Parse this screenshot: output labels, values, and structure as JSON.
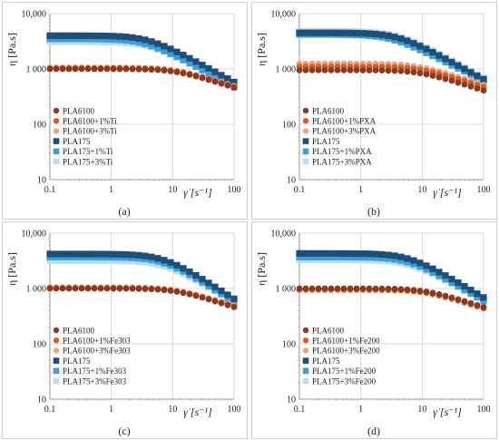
{
  "chart_data": [
    {
      "type": "scatter",
      "panel_label": "(a)",
      "xscale": "log",
      "yscale": "log",
      "xlim": [
        0.1,
        100
      ],
      "ylim": [
        10,
        10000
      ],
      "xticks": [
        "0.1",
        "1",
        "10",
        "100"
      ],
      "yticks": [
        "10",
        "100",
        "1 000",
        "10,000"
      ],
      "xlabel": "γ̇ [s⁻¹]",
      "ylabel": "η [Pa.s]",
      "grid": true,
      "legend": "bottom-left",
      "series": [
        {
          "name": "PLA6100",
          "marker": "circle",
          "color": "#8b3a1f",
          "eta0": 1000,
          "xc": 11,
          "n": 0.35
        },
        {
          "name": "PLA6100+1%Ti",
          "marker": "circle",
          "color": "#d2602a",
          "eta0": 1030,
          "xc": 11,
          "n": 0.35
        },
        {
          "name": "PLA6100+3%Ti",
          "marker": "circle",
          "color": "#eba584",
          "eta0": 1060,
          "xc": 10,
          "n": 0.33
        },
        {
          "name": "PLA175",
          "marker": "square",
          "color": "#1f4e79",
          "eta0": 4000,
          "xc": 4,
          "n": 0.6
        },
        {
          "name": "PLA175+1%Ti",
          "marker": "square",
          "color": "#3aa0dc",
          "eta0": 3500,
          "xc": 3.5,
          "n": 0.6
        },
        {
          "name": "PLA175+3%Ti",
          "marker": "square",
          "color": "#b9dcf0",
          "eta0": 3100,
          "xc": 4,
          "n": 0.55
        }
      ]
    },
    {
      "type": "scatter",
      "panel_label": "(b)",
      "xscale": "log",
      "yscale": "log",
      "xlim": [
        0.1,
        100
      ],
      "ylim": [
        10,
        10000
      ],
      "xticks": [
        "0.1",
        "1",
        "10",
        "100"
      ],
      "yticks": [
        "10",
        "100",
        "1 000",
        "10,000"
      ],
      "xlabel": "γ̇ [s⁻¹]",
      "ylabel": "η [Pa.s]",
      "grid": true,
      "legend": "bottom-left",
      "series": [
        {
          "name": "PLA6100",
          "marker": "circle",
          "color": "#8b3a1f",
          "eta0": 950,
          "xc": 9,
          "n": 0.35
        },
        {
          "name": "PLA6100+1%PXA",
          "marker": "circle",
          "color": "#d2602a",
          "eta0": 1100,
          "xc": 9,
          "n": 0.35
        },
        {
          "name": "PLA6100+3%PXA",
          "marker": "circle",
          "color": "#eba584",
          "eta0": 1250,
          "xc": 8,
          "n": 0.35
        },
        {
          "name": "PLA175",
          "marker": "square",
          "color": "#1f4e79",
          "eta0": 4500,
          "xc": 4,
          "n": 0.6
        },
        {
          "name": "PLA175+1%PXA",
          "marker": "square",
          "color": "#3aa0dc",
          "eta0": 4200,
          "xc": 3,
          "n": 0.55
        },
        {
          "name": "PLA175+3%PXA",
          "marker": "square",
          "color": "#b9dcf0",
          "eta0": 4800,
          "xc": 4,
          "n": 0.6
        }
      ]
    },
    {
      "type": "scatter",
      "panel_label": "(c)",
      "xscale": "log",
      "yscale": "log",
      "xlim": [
        0.1,
        100
      ],
      "ylim": [
        10,
        10000
      ],
      "xticks": [
        "0.1",
        "1",
        "10",
        "100"
      ],
      "yticks": [
        "10",
        "100",
        "1 000",
        "10,000"
      ],
      "xlabel": "γ̇ [s⁻¹]",
      "ylabel": "η [Pa.s]",
      "grid": true,
      "legend": "bottom-left",
      "series": [
        {
          "name": "PLA6100",
          "marker": "circle",
          "color": "#8b3a1f",
          "eta0": 1000,
          "xc": 11,
          "n": 0.35
        },
        {
          "name": "PLA6100+1%Fe303",
          "marker": "circle",
          "color": "#d2602a",
          "eta0": 1020,
          "xc": 11,
          "n": 0.35
        },
        {
          "name": "PLA6100+3%Fe303",
          "marker": "circle",
          "color": "#eba584",
          "eta0": 1050,
          "xc": 10,
          "n": 0.33
        },
        {
          "name": "PLA175",
          "marker": "square",
          "color": "#1f4e79",
          "eta0": 4200,
          "xc": 7,
          "n": 0.7
        },
        {
          "name": "PLA175+1%Fe303",
          "marker": "square",
          "color": "#3aa0dc",
          "eta0": 3700,
          "xc": 7,
          "n": 0.7
        },
        {
          "name": "PLA175+3%Fe303",
          "marker": "square",
          "color": "#b9dcf0",
          "eta0": 3200,
          "xc": 7,
          "n": 0.65
        }
      ]
    },
    {
      "type": "scatter",
      "panel_label": "(d)",
      "xscale": "log",
      "yscale": "log",
      "xlim": [
        0.1,
        100
      ],
      "ylim": [
        10,
        10000
      ],
      "xticks": [
        "0.1",
        "1",
        "10",
        "100"
      ],
      "yticks": [
        "10",
        "100",
        "1 000",
        "10,000"
      ],
      "xlabel": "γ̇ [s⁻¹]",
      "ylabel": "η [Pa.s]",
      "grid": true,
      "legend": "bottom-left",
      "series": [
        {
          "name": "PLA6100",
          "marker": "circle",
          "color": "#8b3a1f",
          "eta0": 1000,
          "xc": 11,
          "n": 0.35
        },
        {
          "name": "PLA6100+1%Fe200",
          "marker": "circle",
          "color": "#d2602a",
          "eta0": 950,
          "xc": 11,
          "n": 0.35
        },
        {
          "name": "PLA6100+3%Fe200",
          "marker": "circle",
          "color": "#eba584",
          "eta0": 980,
          "xc": 10,
          "n": 0.33
        },
        {
          "name": "PLA175",
          "marker": "square",
          "color": "#1f4e79",
          "eta0": 4300,
          "xc": 6,
          "n": 0.65
        },
        {
          "name": "PLA175+1%Fe200",
          "marker": "square",
          "color": "#3aa0dc",
          "eta0": 3700,
          "xc": 6,
          "n": 0.65
        },
        {
          "name": "PLA175+3%Fe200",
          "marker": "square",
          "color": "#b9dcf0",
          "eta0": 3300,
          "xc": 6,
          "n": 0.6
        }
      ]
    }
  ]
}
